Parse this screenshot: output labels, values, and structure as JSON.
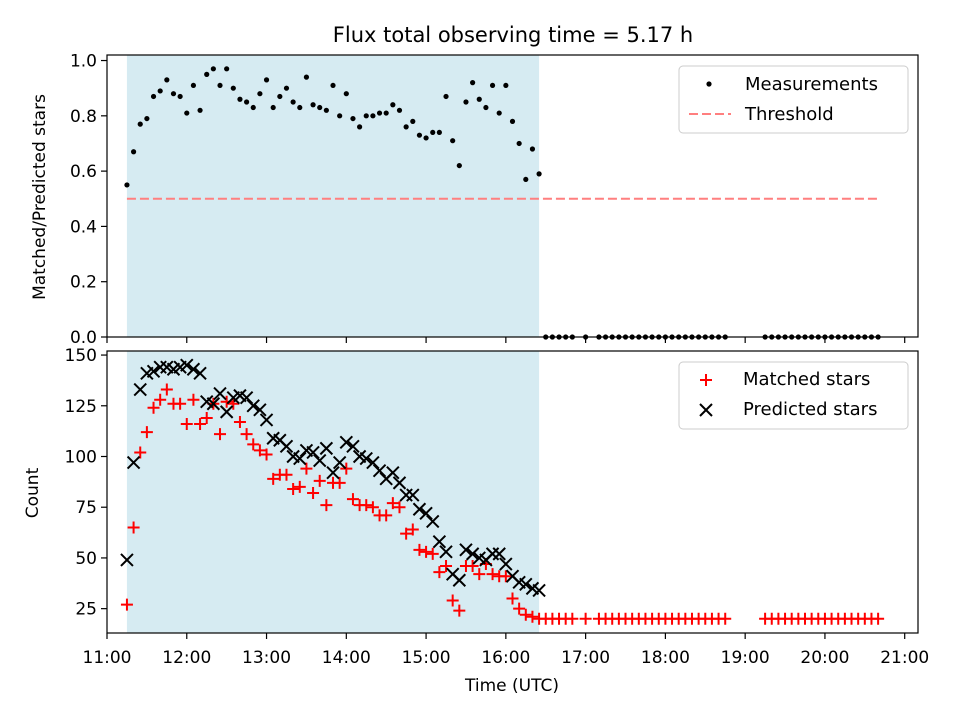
{
  "title": "Flux total observing time = 5.17 h",
  "colors": {
    "shade": "#add8e6",
    "threshold": "#ff7f7f",
    "measurements": "#000000",
    "matched": "#ff0000",
    "predicted": "#000000"
  },
  "x_ticks": [
    "11:00",
    "12:00",
    "13:00",
    "14:00",
    "15:00",
    "16:00",
    "17:00",
    "18:00",
    "19:00",
    "20:00",
    "21:00"
  ],
  "chart_data": [
    {
      "type": "scatter",
      "ylabel": "Matched/Predicted stars",
      "xlabel": "",
      "xlim": [
        "11:00",
        "21:10"
      ],
      "ylim": [
        0,
        1.02
      ],
      "y_ticks": [
        "0.0",
        "0.2",
        "0.4",
        "0.6",
        "0.8",
        "1.0"
      ],
      "shaded_span": [
        "11:15",
        "16:25"
      ],
      "threshold": 0.5,
      "threshold_span": [
        "11:15",
        "20:40"
      ],
      "legend": {
        "position": "top-right",
        "entries": [
          "Measurements",
          "Threshold"
        ]
      },
      "series": [
        {
          "name": "Measurements",
          "x": [
            "11:15",
            "11:20",
            "11:25",
            "11:30",
            "11:35",
            "11:40",
            "11:45",
            "11:50",
            "11:55",
            "12:00",
            "12:05",
            "12:10",
            "12:15",
            "12:20",
            "12:25",
            "12:30",
            "12:35",
            "12:40",
            "12:45",
            "12:50",
            "12:55",
            "13:00",
            "13:05",
            "13:10",
            "13:15",
            "13:20",
            "13:25",
            "13:30",
            "13:35",
            "13:40",
            "13:45",
            "13:50",
            "13:55",
            "14:00",
            "14:05",
            "14:10",
            "14:15",
            "14:20",
            "14:25",
            "14:30",
            "14:35",
            "14:40",
            "14:45",
            "14:50",
            "14:55",
            "15:00",
            "15:05",
            "15:10",
            "15:15",
            "15:20",
            "15:25",
            "15:30",
            "15:35",
            "15:40",
            "15:45",
            "15:50",
            "15:55",
            "16:00",
            "16:05",
            "16:10",
            "16:15",
            "16:20",
            "16:25",
            "16:30",
            "16:35",
            "16:40",
            "16:45",
            "16:50",
            "17:00",
            "17:10",
            "17:15",
            "17:20",
            "17:25",
            "17:30",
            "17:35",
            "17:40",
            "17:45",
            "17:50",
            "17:55",
            "18:00",
            "18:05",
            "18:10",
            "18:15",
            "18:20",
            "18:25",
            "18:30",
            "18:35",
            "18:40",
            "18:45",
            "19:15",
            "19:20",
            "19:25",
            "19:30",
            "19:35",
            "19:40",
            "19:45",
            "19:50",
            "19:55",
            "20:00",
            "20:05",
            "20:10",
            "20:15",
            "20:20",
            "20:25",
            "20:30",
            "20:35",
            "20:40"
          ],
          "y": [
            0.55,
            0.67,
            0.77,
            0.79,
            0.87,
            0.89,
            0.93,
            0.88,
            0.87,
            0.81,
            0.91,
            0.82,
            0.95,
            0.97,
            0.91,
            0.97,
            0.9,
            0.86,
            0.85,
            0.83,
            0.88,
            0.93,
            0.83,
            0.87,
            0.9,
            0.85,
            0.83,
            0.94,
            0.84,
            0.83,
            0.82,
            0.91,
            0.8,
            0.88,
            0.79,
            0.76,
            0.8,
            0.8,
            0.81,
            0.81,
            0.84,
            0.82,
            0.76,
            0.78,
            0.73,
            0.72,
            0.74,
            0.74,
            0.87,
            0.71,
            0.62,
            0.85,
            0.92,
            0.86,
            0.83,
            0.91,
            0.81,
            0.91,
            0.78,
            0.7,
            0.57,
            0.68,
            0.59,
            0,
            0,
            0,
            0,
            0,
            0,
            0,
            0,
            0,
            0,
            0,
            0,
            0,
            0,
            0,
            0,
            0,
            0,
            0,
            0,
            0,
            0,
            0,
            0,
            0,
            0,
            0,
            0,
            0,
            0,
            0,
            0,
            0,
            0,
            0,
            0,
            0,
            0,
            0,
            0,
            0,
            0,
            0,
            0
          ]
        }
      ]
    },
    {
      "type": "scatter",
      "ylabel": "Count",
      "xlabel": "Time (UTC)",
      "xlim": [
        "11:00",
        "21:10"
      ],
      "ylim": [
        13,
        152
      ],
      "y_ticks": [
        "25",
        "50",
        "75",
        "100",
        "125",
        "150"
      ],
      "shaded_span": [
        "11:15",
        "16:25"
      ],
      "legend": {
        "position": "top-right",
        "entries": [
          "Matched stars",
          "Predicted stars"
        ]
      },
      "series": [
        {
          "name": "Matched stars",
          "x": [
            "11:15",
            "11:20",
            "11:25",
            "11:30",
            "11:35",
            "11:40",
            "11:45",
            "11:50",
            "11:55",
            "12:00",
            "12:05",
            "12:10",
            "12:15",
            "12:20",
            "12:25",
            "12:30",
            "12:35",
            "12:40",
            "12:45",
            "12:50",
            "12:55",
            "13:00",
            "13:05",
            "13:10",
            "13:15",
            "13:20",
            "13:25",
            "13:30",
            "13:35",
            "13:40",
            "13:45",
            "13:50",
            "13:55",
            "14:00",
            "14:05",
            "14:10",
            "14:15",
            "14:20",
            "14:25",
            "14:30",
            "14:35",
            "14:40",
            "14:45",
            "14:50",
            "14:55",
            "15:00",
            "15:05",
            "15:10",
            "15:15",
            "15:20",
            "15:25",
            "15:30",
            "15:35",
            "15:40",
            "15:45",
            "15:50",
            "15:55",
            "16:00",
            "16:05",
            "16:10",
            "16:15",
            "16:20",
            "16:25",
            "16:30",
            "16:35",
            "16:40",
            "16:45",
            "16:50",
            "17:00",
            "17:10",
            "17:15",
            "17:20",
            "17:25",
            "17:30",
            "17:35",
            "17:40",
            "17:45",
            "17:50",
            "17:55",
            "18:00",
            "18:05",
            "18:10",
            "18:15",
            "18:20",
            "18:25",
            "18:30",
            "18:35",
            "18:40",
            "18:45",
            "19:15",
            "19:20",
            "19:25",
            "19:30",
            "19:35",
            "19:40",
            "19:45",
            "19:50",
            "19:55",
            "20:00",
            "20:05",
            "20:10",
            "20:15",
            "20:20",
            "20:25",
            "20:30",
            "20:35",
            "20:40"
          ],
          "y": [
            27,
            65,
            102,
            112,
            124,
            128,
            133,
            126,
            126,
            116,
            128,
            116,
            119,
            126,
            111,
            127,
            126,
            117,
            111,
            106,
            103,
            101,
            89,
            91,
            91,
            84,
            85,
            94,
            82,
            88,
            76,
            87,
            87,
            94,
            79,
            76,
            76,
            75,
            71,
            71,
            77,
            75,
            62,
            64,
            54,
            53,
            52,
            43,
            46,
            29,
            24,
            46,
            46,
            42,
            47,
            42,
            41,
            41,
            30,
            25,
            22,
            21,
            20,
            20,
            20,
            20,
            20,
            20,
            20,
            20,
            20,
            20,
            20,
            20,
            20,
            20,
            20,
            20,
            20,
            20,
            20,
            20,
            20,
            20,
            20,
            20,
            20,
            20,
            20,
            20,
            20,
            20,
            20,
            20,
            20,
            20,
            20,
            20,
            20,
            20,
            20,
            20,
            20,
            20,
            20,
            20,
            20
          ]
        },
        {
          "name": "Predicted stars",
          "x": [
            "11:15",
            "11:20",
            "11:25",
            "11:30",
            "11:35",
            "11:40",
            "11:45",
            "11:50",
            "11:55",
            "12:00",
            "12:05",
            "12:10",
            "12:15",
            "12:20",
            "12:25",
            "12:30",
            "12:35",
            "12:40",
            "12:45",
            "12:50",
            "12:55",
            "13:00",
            "13:05",
            "13:10",
            "13:15",
            "13:20",
            "13:25",
            "13:30",
            "13:35",
            "13:40",
            "13:45",
            "13:50",
            "13:55",
            "14:00",
            "14:05",
            "14:10",
            "14:15",
            "14:20",
            "14:25",
            "14:30",
            "14:35",
            "14:40",
            "14:45",
            "14:50",
            "14:55",
            "15:00",
            "15:05",
            "15:10",
            "15:15",
            "15:20",
            "15:25",
            "15:30",
            "15:35",
            "15:40",
            "15:45",
            "15:50",
            "15:55",
            "16:00",
            "16:05",
            "16:10",
            "16:15",
            "16:20",
            "16:25"
          ],
          "y": [
            49,
            97,
            133,
            141,
            142,
            144,
            144,
            143,
            144,
            145,
            143,
            141,
            127,
            126,
            131,
            122,
            129,
            130,
            129,
            125,
            123,
            118,
            109,
            108,
            105,
            100,
            99,
            103,
            102,
            98,
            104,
            92,
            97,
            107,
            105,
            100,
            99,
            97,
            93,
            89,
            92,
            87,
            81,
            81,
            74,
            72,
            68,
            58,
            53,
            42,
            39,
            54,
            52,
            50,
            49,
            52,
            52,
            47,
            41,
            38,
            37,
            35,
            34
          ]
        }
      ]
    }
  ]
}
